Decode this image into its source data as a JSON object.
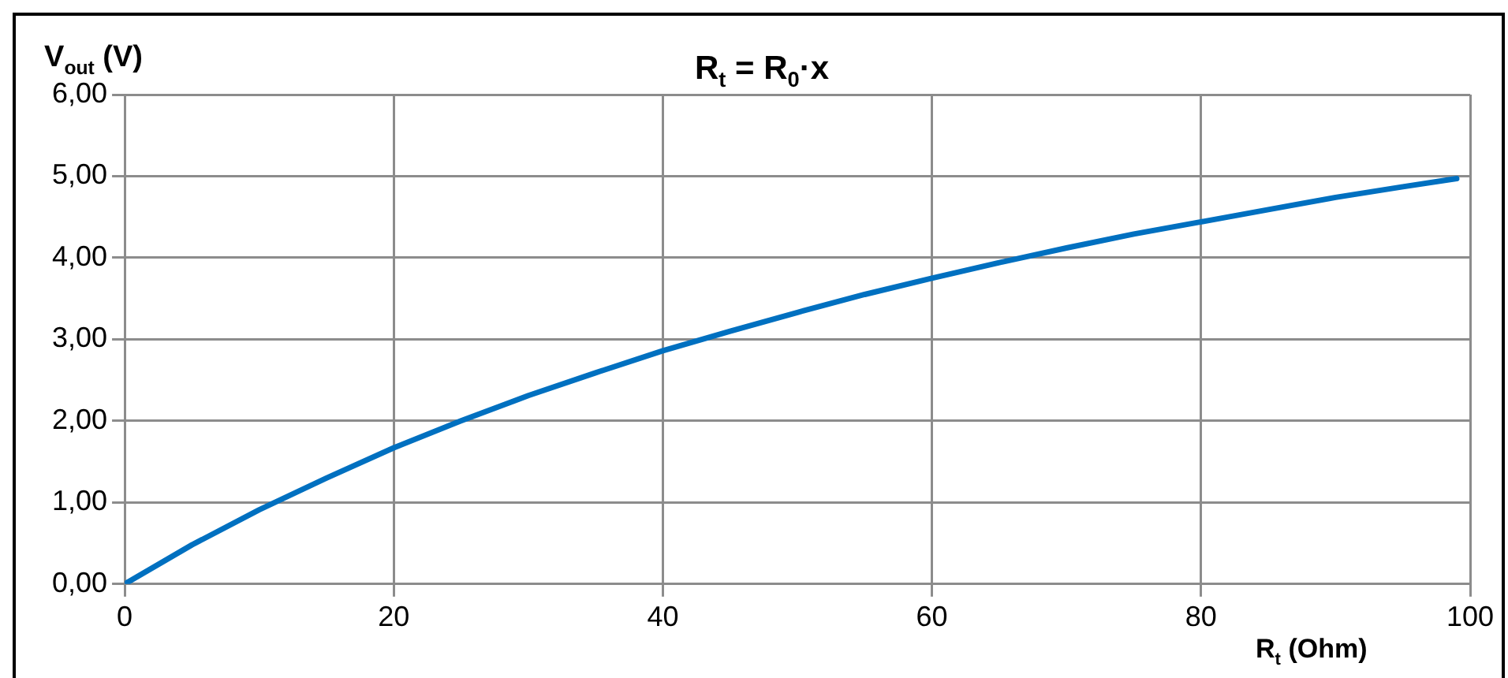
{
  "chart_data": {
    "type": "line",
    "title": "R$_{t}$ = R$_{0}$·x",
    "xlabel": "R$_{t}$ (Ohm)",
    "ylabel": "V$_{out}$ (V)",
    "x": [
      0,
      5,
      10,
      15,
      20,
      25,
      30,
      35,
      40,
      45,
      50,
      55,
      60,
      65,
      70,
      75,
      80,
      85,
      90,
      95,
      99
    ],
    "series": [
      {
        "color": "#0070c0",
        "values": [
          0,
          0.48,
          0.91,
          1.3,
          1.67,
          2.0,
          2.31,
          2.59,
          2.86,
          3.1,
          3.33,
          3.55,
          3.75,
          3.94,
          4.12,
          4.29,
          4.44,
          4.59,
          4.74,
          4.87,
          4.97
        ]
      }
    ],
    "xlim": [
      0,
      100
    ],
    "xticks": [
      0,
      20,
      40,
      60,
      80,
      100
    ],
    "ylim": [
      0,
      6
    ],
    "yticks": [
      {
        "value": 0,
        "label": "0,00"
      },
      {
        "value": 1,
        "label": "1,00"
      },
      {
        "value": 2,
        "label": "2,00"
      },
      {
        "value": 3,
        "label": "3,00"
      },
      {
        "value": 4,
        "label": "4,00"
      },
      {
        "value": 5,
        "label": "5,00"
      },
      {
        "value": 6,
        "label": "6,00"
      }
    ],
    "grid": true,
    "legend": false,
    "marker": "none",
    "line_style": "solid"
  }
}
